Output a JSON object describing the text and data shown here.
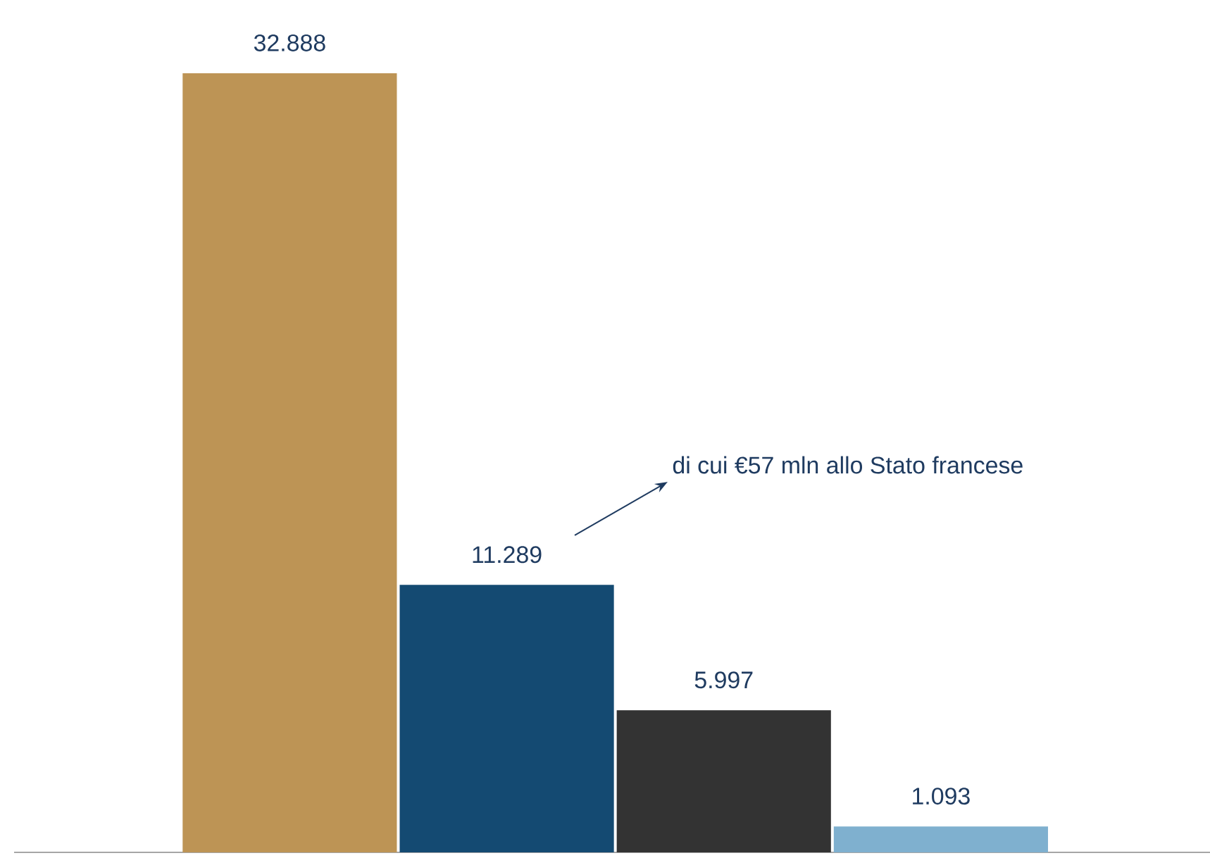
{
  "chart_data": {
    "type": "bar",
    "categories": [
      null,
      null,
      null,
      null
    ],
    "values": [
      32.888,
      11.289,
      5.997,
      1.093
    ],
    "colors": [
      "#bd9455",
      "#144a72",
      "#333333",
      "#7fb0cf"
    ],
    "value_labels": [
      "32.888",
      "11.289",
      "5.997",
      "1.093"
    ],
    "annotations": [
      "di cui €57 mln allo Stato francese"
    ]
  }
}
